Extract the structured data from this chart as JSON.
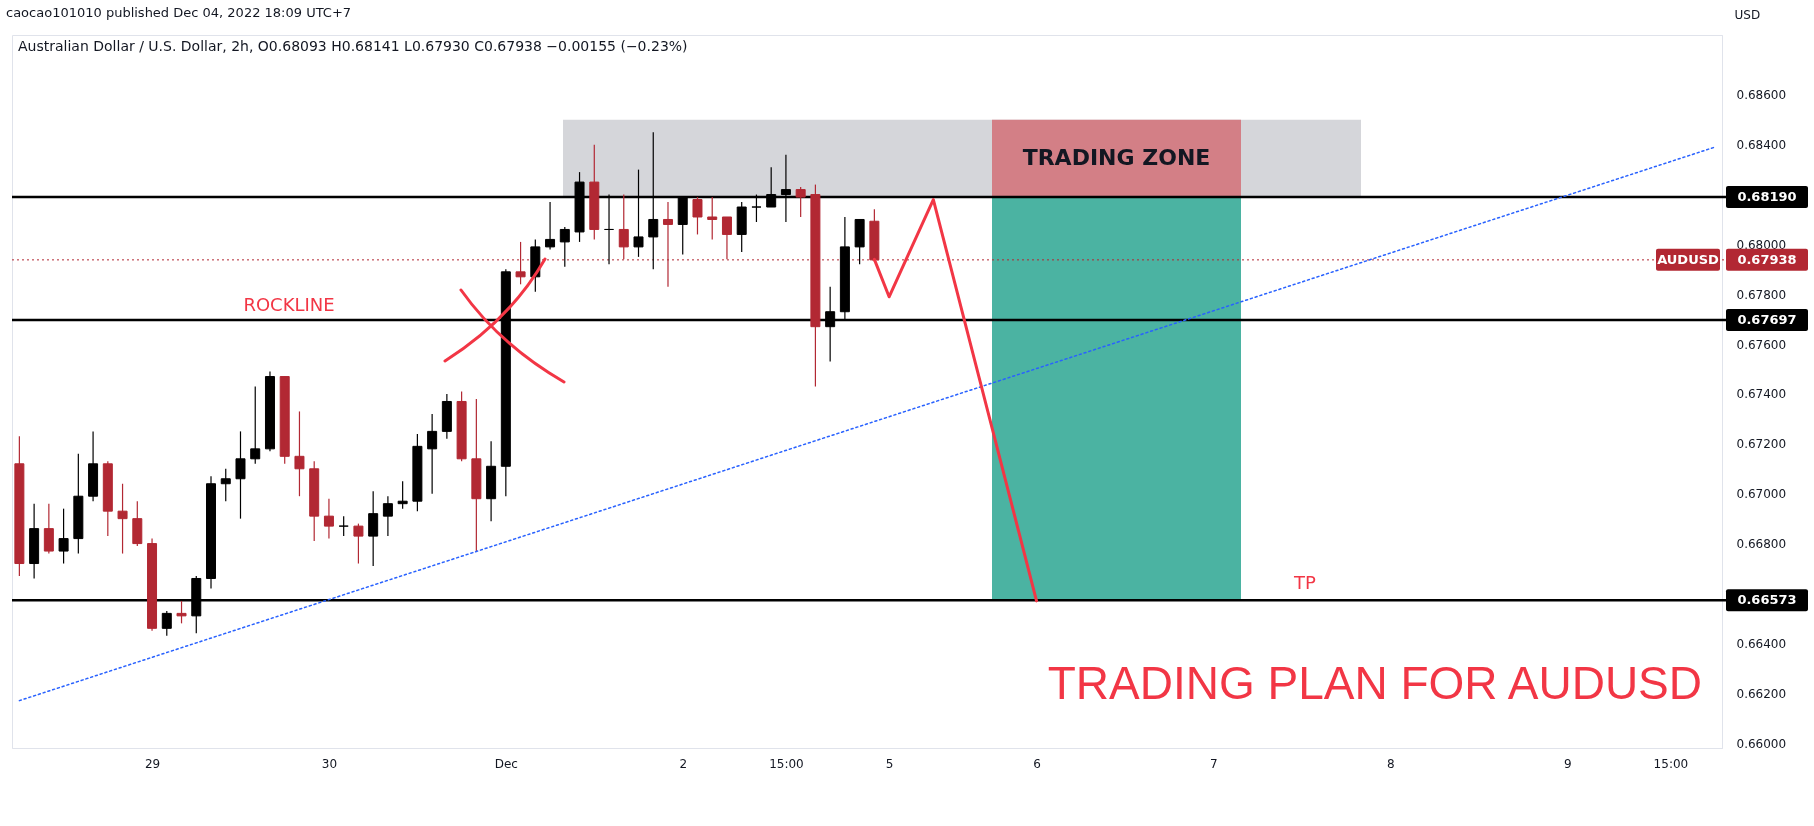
{
  "chart_data": {
    "type": "candlestick",
    "title": "Australian Dollar / U.S. Dollar, 2h, O0.68093 H0.68141 L0.67930 C0.67938 −0.00155 (−0.23%)",
    "ylabel": "USD",
    "categories": [
      null,
      null,
      null,
      null,
      null,
      null,
      null,
      null,
      null,
      "29",
      null,
      null,
      null,
      null,
      null,
      null,
      null,
      null,
      null,
      null,
      null,
      "30",
      null,
      null,
      null,
      null,
      null,
      null,
      null,
      null,
      null,
      null,
      null,
      "Dec",
      null,
      null,
      null,
      null,
      null,
      null,
      null,
      null,
      null,
      null,
      null,
      "2",
      null,
      null,
      null,
      null,
      null,
      null,
      "15:00",
      null,
      null,
      null,
      null,
      null,
      null,
      "5",
      null,
      null,
      null,
      null,
      null,
      null,
      null,
      null,
      null,
      "6",
      null,
      null,
      null,
      null,
      null,
      null,
      null,
      null,
      null,
      null,
      null,
      "7",
      null,
      null,
      null,
      null,
      null,
      null,
      null,
      null,
      null,
      null,
      null,
      "8",
      null,
      null,
      null,
      null,
      null,
      null,
      null,
      null,
      null,
      null,
      null,
      "9",
      null,
      null,
      null,
      null,
      null,
      null,
      "15:00",
      null,
      null,
      null
    ],
    "ohlc": [
      [
        0.6712,
        0.6723,
        0.6667,
        0.6672
      ],
      [
        0.6672,
        0.6696,
        0.6666,
        0.6686
      ],
      [
        0.6686,
        0.6696,
        0.6676,
        0.6677
      ],
      [
        0.6677,
        0.6694,
        0.6672,
        0.6682
      ],
      [
        0.6682,
        0.6716,
        0.6676,
        0.6699
      ],
      [
        0.6699,
        0.6725,
        0.6697,
        0.6712
      ],
      [
        0.6712,
        0.6713,
        0.6683,
        0.6693
      ],
      [
        0.6693,
        0.6704,
        0.6676,
        0.669
      ],
      [
        0.669,
        0.6697,
        0.6679,
        0.668
      ],
      [
        0.668,
        0.6682,
        0.6645,
        0.6646
      ],
      [
        0.6646,
        0.6653,
        0.6643,
        0.6652
      ],
      [
        0.6652,
        0.6657,
        0.6648,
        0.6651
      ],
      [
        0.6651,
        0.6667,
        0.6644,
        0.6666
      ],
      [
        0.6666,
        0.6707,
        0.6662,
        0.6704
      ],
      [
        0.6704,
        0.671,
        0.6697,
        0.6706
      ],
      [
        0.6706,
        0.6725,
        0.669,
        0.6714
      ],
      [
        0.6714,
        0.6743,
        0.6712,
        0.6718
      ],
      [
        0.6718,
        0.6749,
        0.6717,
        0.6747
      ],
      [
        0.6747,
        0.6747,
        0.6712,
        0.6715
      ],
      [
        0.6715,
        0.6733,
        0.6699,
        0.671
      ],
      [
        0.671,
        0.6713,
        0.6681,
        0.6691
      ],
      [
        0.6691,
        0.6698,
        0.6682,
        0.6687
      ],
      [
        0.6687,
        0.6691,
        0.6683,
        0.6687
      ],
      [
        0.6687,
        0.6688,
        0.6672,
        0.6683
      ],
      [
        0.6683,
        0.6701,
        0.6671,
        0.6692
      ],
      [
        0.6691,
        0.6699,
        0.6683,
        0.6696
      ],
      [
        0.6696,
        0.6705,
        0.6694,
        0.6697
      ],
      [
        0.6697,
        0.6724,
        0.6693,
        0.6719
      ],
      [
        0.6718,
        0.6732,
        0.67,
        0.6725
      ],
      [
        0.6725,
        0.674,
        0.6722,
        0.6737
      ],
      [
        0.6737,
        0.6741,
        0.6713,
        0.6714
      ],
      [
        0.6714,
        0.6738,
        0.6677,
        0.6698
      ],
      [
        0.6698,
        0.6721,
        0.6689,
        0.6711
      ],
      [
        0.6711,
        0.679,
        0.6699,
        0.6789
      ],
      [
        0.6789,
        0.6801,
        0.6784,
        0.6787
      ],
      [
        0.6787,
        0.6802,
        0.6781,
        0.6799
      ],
      [
        0.6799,
        0.6817,
        0.6798,
        0.6802
      ],
      [
        0.6801,
        0.6807,
        0.6791,
        0.6806
      ],
      [
        0.6805,
        0.6829,
        0.6801,
        0.6825
      ],
      [
        0.6825,
        0.684,
        0.6802,
        0.6806
      ],
      [
        0.6806,
        0.682,
        0.6792,
        0.6806
      ],
      [
        0.6806,
        0.682,
        0.6794,
        0.6799
      ],
      [
        0.6799,
        0.683,
        0.6795,
        0.6803
      ],
      [
        0.6803,
        0.6845,
        0.679,
        0.681
      ],
      [
        0.681,
        0.6817,
        0.6783,
        0.6808
      ],
      [
        0.6808,
        0.6819,
        0.6796,
        0.6819
      ],
      [
        0.6818,
        0.6819,
        0.6804,
        0.6811
      ],
      [
        0.6811,
        0.6819,
        0.6802,
        0.681
      ],
      [
        0.6811,
        0.6811,
        0.6794,
        0.6804
      ],
      [
        0.6804,
        0.6817,
        0.6797,
        0.6815
      ],
      [
        0.6815,
        0.682,
        0.6809,
        0.6815
      ],
      [
        0.6815,
        0.6831,
        0.6815,
        0.682
      ],
      [
        0.682,
        0.6836,
        0.6809,
        0.6822
      ],
      [
        0.6822,
        0.6823,
        0.6811,
        0.6819
      ],
      [
        0.682,
        0.6824,
        0.6743,
        0.6767
      ],
      [
        0.6767,
        0.6783,
        0.6753,
        0.6773
      ],
      [
        0.6773,
        0.6811,
        0.677,
        0.6799
      ],
      [
        0.6799,
        0.681,
        0.6792,
        0.681
      ],
      [
        0.68093,
        0.68141,
        0.6793,
        0.67938
      ],
      null,
      null,
      null,
      null,
      null,
      null,
      null,
      null,
      null,
      null,
      null,
      null,
      null,
      null,
      null,
      null,
      null,
      null,
      null,
      null,
      null,
      null,
      null,
      null,
      null,
      null,
      null,
      null,
      null,
      null,
      null,
      null,
      null,
      null,
      null,
      null,
      null,
      null,
      null,
      null,
      null,
      null,
      null,
      null,
      null,
      null,
      null,
      null,
      null,
      null,
      null,
      null,
      null,
      null,
      null,
      null,
      null
    ],
    "colors": [
      "#b22833",
      "#000000",
      "#b22833",
      "#000000",
      "#000000",
      "#000000",
      "#b22833",
      "#b22833",
      "#b22833",
      "#b22833",
      "#000000",
      "#b22833",
      "#000000",
      "#000000",
      "#000000",
      "#000000",
      "#000000",
      "#000000",
      "#b22833",
      "#b22833",
      "#b22833",
      "#b22833",
      "#000000",
      "#b22833",
      "#000000",
      "#000000",
      "#000000",
      "#000000",
      "#000000",
      "#000000",
      "#b22833",
      "#b22833",
      "#000000",
      "#000000",
      "#b22833",
      "#000000",
      "#000000",
      "#000000",
      "#000000",
      "#b22833",
      "#000000",
      "#b22833",
      "#000000",
      "#000000",
      "#b22833",
      "#000000",
      "#b22833",
      "#b22833",
      "#b22833",
      "#000000",
      "#000000",
      "#000000",
      "#000000",
      "#b22833",
      "#b22833",
      "#000000",
      "#000000",
      "#000000",
      "#b22833",
      null,
      null,
      null,
      null,
      null,
      null,
      null,
      null,
      null,
      null,
      null,
      null,
      null,
      null,
      null,
      null,
      null,
      null,
      null,
      null,
      null,
      null,
      null,
      null,
      null,
      null,
      null,
      null,
      null,
      null,
      null,
      null,
      null,
      null,
      null,
      null,
      null,
      null,
      null,
      null,
      null,
      null,
      null,
      null,
      null,
      null,
      null,
      null,
      null,
      null,
      null,
      null,
      null,
      null,
      null,
      null,
      null
    ],
    "series": [
      {
        "type": "line",
        "color": "#2962ff",
        "line_style": "dotted",
        "values": [
          0.6617,
          null,
          null,
          null,
          null,
          null,
          null,
          null,
          null,
          null,
          null,
          null,
          null,
          null,
          null,
          null,
          null,
          null,
          null,
          null,
          null,
          null,
          null,
          null,
          null,
          null,
          null,
          null,
          null,
          null,
          null,
          null,
          null,
          null,
          null,
          null,
          null,
          null,
          null,
          null,
          null,
          null,
          null,
          null,
          null,
          null,
          null,
          null,
          null,
          null,
          null,
          null,
          null,
          null,
          null,
          null,
          null,
          null,
          null,
          null,
          null,
          null,
          null,
          null,
          null,
          null,
          null,
          null,
          null,
          null,
          null,
          null,
          null,
          null,
          null,
          null,
          null,
          null,
          null,
          null,
          null,
          null,
          null,
          null,
          null,
          null,
          null,
          null,
          null,
          null,
          null,
          null,
          null,
          null,
          null,
          null,
          null,
          null,
          null,
          null,
          null,
          null,
          null,
          null,
          null,
          null,
          null,
          null,
          null,
          null,
          null,
          null,
          null,
          null,
          null,
          0.6839
        ]
      },
      {
        "type": "line",
        "color": "#f23645",
        "line_style": "solid",
        "values": [
          null,
          null,
          null,
          null,
          null,
          null,
          null,
          null,
          null,
          null,
          null,
          null,
          null,
          null,
          null,
          null,
          null,
          null,
          null,
          null,
          null,
          null,
          null,
          null,
          null,
          null,
          null,
          null,
          null,
          null,
          null,
          null,
          null,
          null,
          null,
          null,
          null,
          null,
          null,
          null,
          null,
          null,
          null,
          null,
          null,
          null,
          null,
          null,
          null,
          null,
          null,
          null,
          null,
          null,
          null,
          null,
          null,
          null,
          0.6794,
          0.6779,
          null,
          null,
          0.6818,
          null,
          null,
          null,
          0.6726,
          null,
          null,
          0.6657,
          null,
          null,
          null,
          null,
          null,
          null,
          null,
          null,
          null,
          null,
          null,
          null,
          null,
          null,
          null,
          null,
          null,
          null,
          null,
          null,
          null,
          null,
          null,
          null,
          null,
          null,
          null,
          null,
          null,
          null,
          null,
          null,
          null,
          null,
          null,
          null,
          null,
          null,
          null,
          null,
          null,
          null,
          null,
          null,
          null,
          null
        ]
      }
    ],
    "ylim": [
      0.6598,
      0.6884
    ],
    "yticks": [
      {
        "value": 0.66,
        "label": "0.66000"
      },
      {
        "value": 0.662,
        "label": "0.66200"
      },
      {
        "value": 0.664,
        "label": "0.66400"
      },
      {
        "value": 0.668,
        "label": "0.66800"
      },
      {
        "value": 0.67,
        "label": "0.67000"
      },
      {
        "value": 0.672,
        "label": "0.67200"
      },
      {
        "value": 0.674,
        "label": "0.67400"
      },
      {
        "value": 0.676,
        "label": "0.67600"
      },
      {
        "value": 0.678,
        "label": "0.67800"
      },
      {
        "value": 0.68,
        "label": "0.68000"
      },
      {
        "value": 0.684,
        "label": "0.68400"
      },
      {
        "value": 0.686,
        "label": "0.68600"
      }
    ],
    "ref_lines": [
      {
        "axis": "y",
        "value": 0.6819,
        "label": "0.68190",
        "color": "#000000",
        "line_style": "solid"
      },
      {
        "axis": "y",
        "value": 0.67697,
        "label": "0.67697",
        "color": "#000000",
        "line_style": "solid"
      },
      {
        "axis": "y",
        "value": 0.66573,
        "label": "0.66573",
        "color": "#000000",
        "line_style": "solid"
      },
      {
        "axis": "y",
        "value": 0.67938,
        "label": "0.67938",
        "color": "#b22833",
        "line_style": "dotted"
      }
    ],
    "bands": [
      {
        "axis": "y",
        "from": 0.6819,
        "to": 0.685,
        "color": "#d5d6da"
      },
      {
        "axis": "y",
        "from": 0.6819,
        "to": 0.685,
        "label": "TRADING ZONE",
        "color": "#d37f86"
      },
      {
        "axis": "y",
        "from": 0.66573,
        "to": 0.6819,
        "color": "#4bb3a2"
      }
    ],
    "annotations": [
      "caocao101010 published Dec 04, 2022 18:09 UTC+7",
      {
        "text": "ROCKLINE",
        "y": 0.67697
      },
      {
        "text": "TP",
        "y": 0.66573
      },
      {
        "text": "AUDUSD",
        "y": 0.67938
      },
      "TRADING PLAN FOR AUDUSD"
    ]
  }
}
